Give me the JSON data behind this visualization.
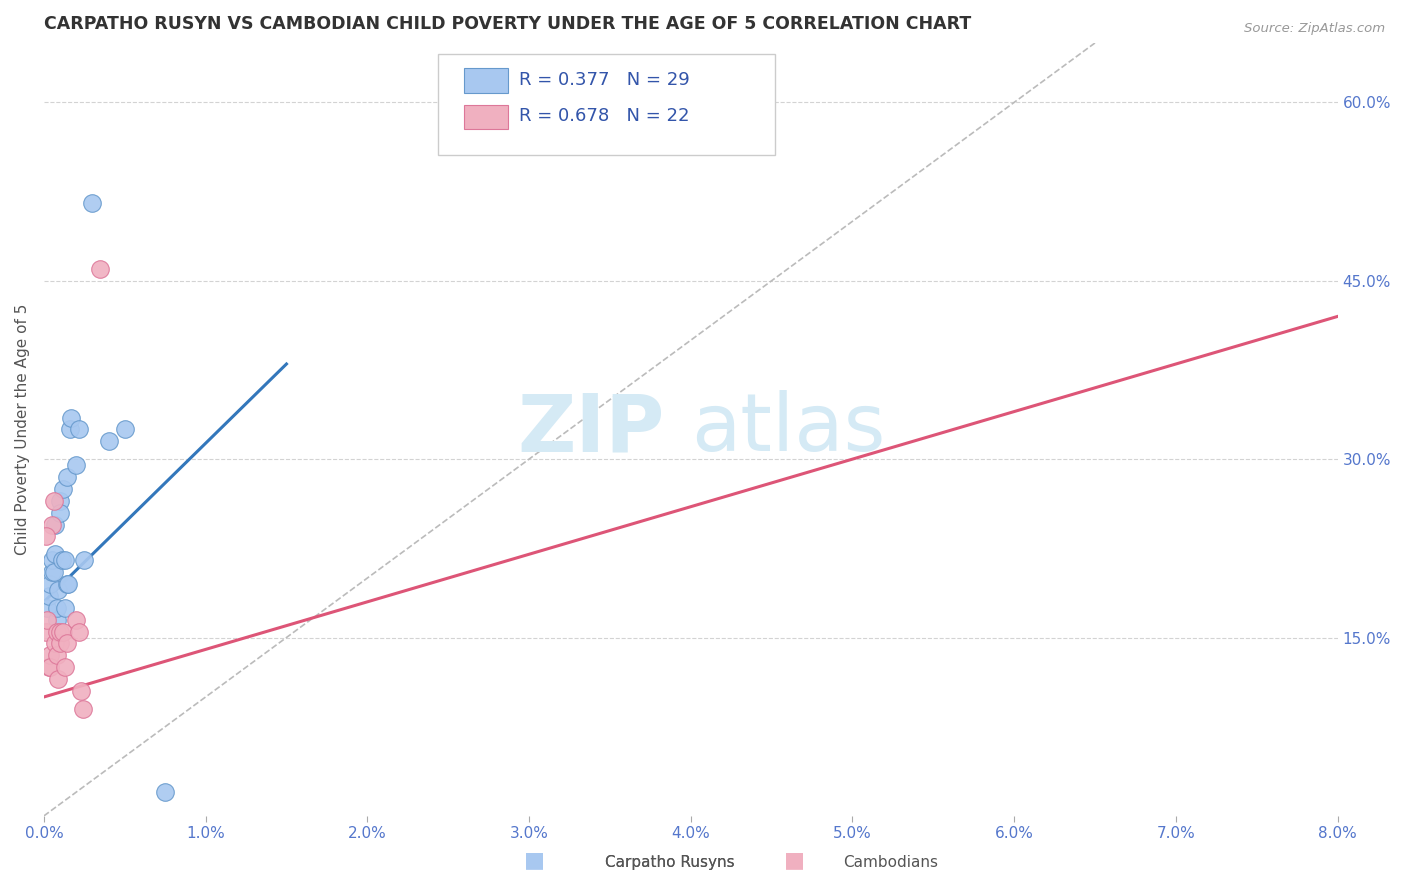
{
  "title": "CARPATHO RUSYN VS CAMBODIAN CHILD POVERTY UNDER THE AGE OF 5 CORRELATION CHART",
  "source": "Source: ZipAtlas.com",
  "ylabel": "Child Poverty Under the Age of 5",
  "xlim": [
    0.0,
    0.08
  ],
  "ylim": [
    0.0,
    0.65
  ],
  "xticks": [
    0.0,
    0.01,
    0.02,
    0.03,
    0.04,
    0.05,
    0.06,
    0.07,
    0.08
  ],
  "xticklabels": [
    "0.0%",
    "1.0%",
    "2.0%",
    "3.0%",
    "4.0%",
    "5.0%",
    "6.0%",
    "7.0%",
    "8.0%"
  ],
  "yticks_right": [
    0.15,
    0.3,
    0.45,
    0.6
  ],
  "yticklabels_right": [
    "15.0%",
    "30.0%",
    "45.0%",
    "60.0%"
  ],
  "background_color": "#ffffff",
  "grid_color": "#c8c8c8",
  "blue_scatter_color": "#a8c8f0",
  "pink_scatter_color": "#f0b0c0",
  "blue_edge_color": "#6699cc",
  "pink_edge_color": "#dd7799",
  "blue_line_color": "#3377bb",
  "pink_line_color": "#dd5577",
  "ref_line_color": "#bbbbbb",
  "axis_color": "#5577cc",
  "legend_text_color": "#3355aa",
  "ylabel_color": "#555555",
  "title_color": "#333333",
  "source_color": "#999999",
  "watermark_color": "#d5eaf5",
  "legend_R1": "R = 0.377",
  "legend_N1": "N = 29",
  "legend_R2": "R = 0.678",
  "legend_N2": "N = 22",
  "legend_label1": "Carpatho Rusyns",
  "legend_label2": "Cambodians",
  "carpatho_rusyn_x": [
    0.0002,
    0.0003,
    0.0004,
    0.0005,
    0.0005,
    0.0006,
    0.0007,
    0.0007,
    0.0008,
    0.0008,
    0.0009,
    0.001,
    0.001,
    0.0011,
    0.0012,
    0.0013,
    0.0013,
    0.0014,
    0.0014,
    0.0015,
    0.0016,
    0.0017,
    0.002,
    0.0022,
    0.0025,
    0.003,
    0.004,
    0.005,
    0.0075
  ],
  "carpatho_rusyn_y": [
    0.175,
    0.185,
    0.195,
    0.205,
    0.215,
    0.205,
    0.22,
    0.245,
    0.165,
    0.175,
    0.19,
    0.265,
    0.255,
    0.215,
    0.275,
    0.215,
    0.175,
    0.195,
    0.285,
    0.195,
    0.325,
    0.335,
    0.295,
    0.325,
    0.215,
    0.515,
    0.315,
    0.325,
    0.02
  ],
  "cambodian_x": [
    0.0001,
    0.0002,
    0.0003,
    0.0004,
    0.0004,
    0.0005,
    0.0006,
    0.0007,
    0.0008,
    0.0008,
    0.0009,
    0.001,
    0.001,
    0.0012,
    0.0013,
    0.0014,
    0.002,
    0.0022,
    0.0023,
    0.0024,
    0.0035,
    0.0001
  ],
  "cambodian_y": [
    0.155,
    0.165,
    0.125,
    0.135,
    0.125,
    0.245,
    0.265,
    0.145,
    0.155,
    0.135,
    0.115,
    0.145,
    0.155,
    0.155,
    0.125,
    0.145,
    0.165,
    0.155,
    0.105,
    0.09,
    0.46,
    0.235
  ],
  "blue_line_x": [
    0.0,
    0.015
  ],
  "blue_line_y": [
    0.18,
    0.38
  ],
  "pink_line_x": [
    0.0,
    0.08
  ],
  "pink_line_y": [
    0.1,
    0.42
  ],
  "ref_line_x": [
    0.0,
    0.065
  ],
  "ref_line_y": [
    0.0,
    0.65
  ]
}
